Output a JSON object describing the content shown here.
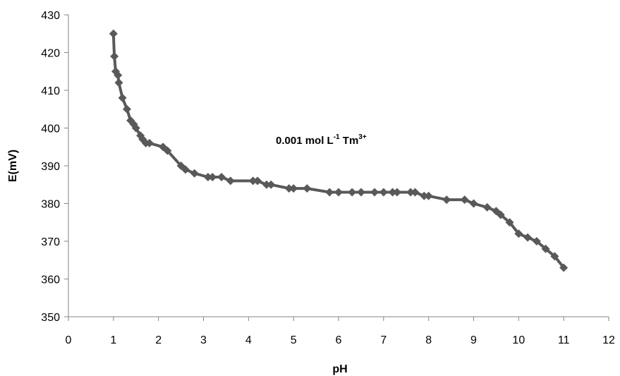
{
  "chart_data": {
    "type": "line",
    "xlabel": "pH",
    "ylabel": "E(mV)",
    "xlim": [
      0,
      12
    ],
    "ylim": [
      350,
      430
    ],
    "x_ticks": [
      "0",
      "1",
      "2",
      "3",
      "4",
      "5",
      "6",
      "7",
      "8",
      "9",
      "10",
      "11",
      "12"
    ],
    "y_ticks": [
      "350",
      "360",
      "370",
      "380",
      "390",
      "400",
      "410",
      "420",
      "430"
    ],
    "grid": false,
    "legend": "none",
    "annotation": {
      "prefix": "0.001 mol L",
      "sup1": "-1",
      "mid": " Tm",
      "sup2": "3+"
    },
    "series": [
      {
        "color": "#595959",
        "marker": "diamond",
        "points": [
          [
            1.0,
            425
          ],
          [
            1.02,
            419
          ],
          [
            1.05,
            415
          ],
          [
            1.1,
            414
          ],
          [
            1.12,
            412
          ],
          [
            1.2,
            408
          ],
          [
            1.3,
            405
          ],
          [
            1.38,
            402
          ],
          [
            1.45,
            401
          ],
          [
            1.5,
            400
          ],
          [
            1.6,
            398
          ],
          [
            1.65,
            397
          ],
          [
            1.72,
            396
          ],
          [
            1.8,
            396
          ],
          [
            2.1,
            395
          ],
          [
            2.2,
            394
          ],
          [
            2.5,
            390
          ],
          [
            2.6,
            389
          ],
          [
            2.8,
            388
          ],
          [
            3.1,
            387
          ],
          [
            3.2,
            387
          ],
          [
            3.4,
            387
          ],
          [
            3.6,
            386
          ],
          [
            4.1,
            386
          ],
          [
            4.2,
            386
          ],
          [
            4.4,
            385
          ],
          [
            4.5,
            385
          ],
          [
            4.9,
            384
          ],
          [
            5.0,
            384
          ],
          [
            5.3,
            384
          ],
          [
            5.8,
            383
          ],
          [
            6.0,
            383
          ],
          [
            6.3,
            383
          ],
          [
            6.5,
            383
          ],
          [
            6.8,
            383
          ],
          [
            7.0,
            383
          ],
          [
            7.2,
            383
          ],
          [
            7.3,
            383
          ],
          [
            7.6,
            383
          ],
          [
            7.7,
            383
          ],
          [
            7.9,
            382
          ],
          [
            8.0,
            382
          ],
          [
            8.4,
            381
          ],
          [
            8.8,
            381
          ],
          [
            9.0,
            380
          ],
          [
            9.3,
            379
          ],
          [
            9.5,
            378
          ],
          [
            9.6,
            377
          ],
          [
            9.8,
            375
          ],
          [
            10.0,
            372
          ],
          [
            10.2,
            371
          ],
          [
            10.4,
            370
          ],
          [
            10.6,
            368
          ],
          [
            10.8,
            366
          ],
          [
            11.0,
            363
          ]
        ]
      }
    ]
  }
}
